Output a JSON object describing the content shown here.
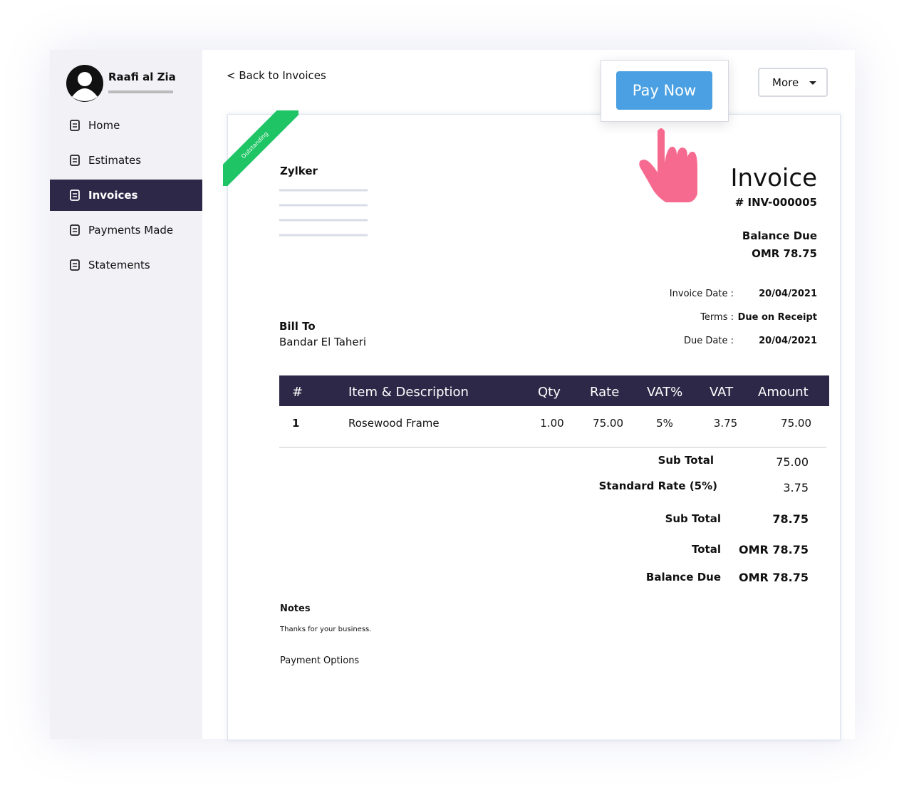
{
  "sidebar": {
    "user": "Raafi al Zia",
    "nav": [
      "Home",
      "Estimates",
      "Invoices",
      "Payments Made",
      "Statements"
    ],
    "active": 2
  },
  "header": {
    "back": "< Back to Invoices",
    "pay_now": "Pay Now",
    "more": "More"
  },
  "invoice": {
    "ribbon": "Outstanding",
    "company": "Zylker",
    "title": "Invoice",
    "number": "# INV-000005",
    "balance_due_label": "Balance Due",
    "balance_due": "OMR 78.75",
    "meta": [
      {
        "label": "Invoice Date :",
        "value": "20/04/2021"
      },
      {
        "label": "Terms :",
        "value": "Due on Receipt"
      },
      {
        "label": "Due Date :",
        "value": "20/04/2021"
      }
    ],
    "bill_to_label": "Bill To",
    "bill_to": "Bandar El Taheri",
    "table": {
      "columns": [
        "#",
        "Item & Description",
        "Qty",
        "Rate",
        "VAT%",
        "VAT",
        "Amount"
      ],
      "rows": [
        [
          "1",
          "Rosewood Frame",
          "1.00",
          "75.00",
          "5%",
          "3.75",
          "75.00"
        ]
      ]
    },
    "totals": [
      {
        "label": "Sub Total",
        "value": "75.00"
      },
      {
        "label": "Standard Rate (5%)",
        "value": "3.75"
      },
      {
        "label": "Sub Total",
        "value": "78.75"
      },
      {
        "label": "Total",
        "value": "OMR 78.75"
      },
      {
        "label": "Balance Due",
        "value": "OMR 78.75"
      }
    ],
    "notes_label": "Notes",
    "notes": "Thanks for your business.",
    "payment_options": "Payment Options"
  }
}
